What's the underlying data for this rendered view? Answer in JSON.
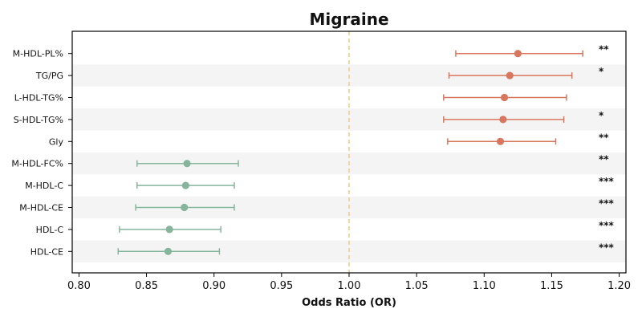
{
  "chart_data": {
    "type": "forest",
    "title": "Migraine",
    "xlabel": "Odds Ratio (OR)",
    "ylabel": "",
    "xlim": [
      0.795,
      1.205
    ],
    "xticks": [
      "0.80",
      "0.85",
      "0.90",
      "0.95",
      "1.00",
      "1.05",
      "1.10",
      "1.15",
      "1.20"
    ],
    "reference_line": 1.0,
    "colors": {
      "risk": "#d9775e",
      "protective": "#86b59b",
      "reference": "#f0c987",
      "band": "#f4f4f4"
    },
    "rows": [
      {
        "label": "M-HDL-PL%",
        "or": 1.125,
        "lower": 1.079,
        "upper": 1.173,
        "sig": "**"
      },
      {
        "label": "TG/PG",
        "or": 1.119,
        "lower": 1.074,
        "upper": 1.165,
        "sig": "*"
      },
      {
        "label": "L-HDL-TG%",
        "or": 1.115,
        "lower": 1.07,
        "upper": 1.161,
        "sig": ""
      },
      {
        "label": "S-HDL-TG%",
        "or": 1.114,
        "lower": 1.07,
        "upper": 1.159,
        "sig": "*"
      },
      {
        "label": "Gly",
        "or": 1.112,
        "lower": 1.073,
        "upper": 1.153,
        "sig": "**"
      },
      {
        "label": "M-HDL-FC%",
        "or": 0.88,
        "lower": 0.843,
        "upper": 0.918,
        "sig": "**"
      },
      {
        "label": "M-HDL-C",
        "or": 0.879,
        "lower": 0.843,
        "upper": 0.915,
        "sig": "***"
      },
      {
        "label": "M-HDL-CE",
        "or": 0.878,
        "lower": 0.842,
        "upper": 0.915,
        "sig": "***"
      },
      {
        "label": "HDL-C",
        "or": 0.867,
        "lower": 0.83,
        "upper": 0.905,
        "sig": "***"
      },
      {
        "label": "HDL-CE",
        "or": 0.866,
        "lower": 0.829,
        "upper": 0.904,
        "sig": "***"
      }
    ]
  }
}
